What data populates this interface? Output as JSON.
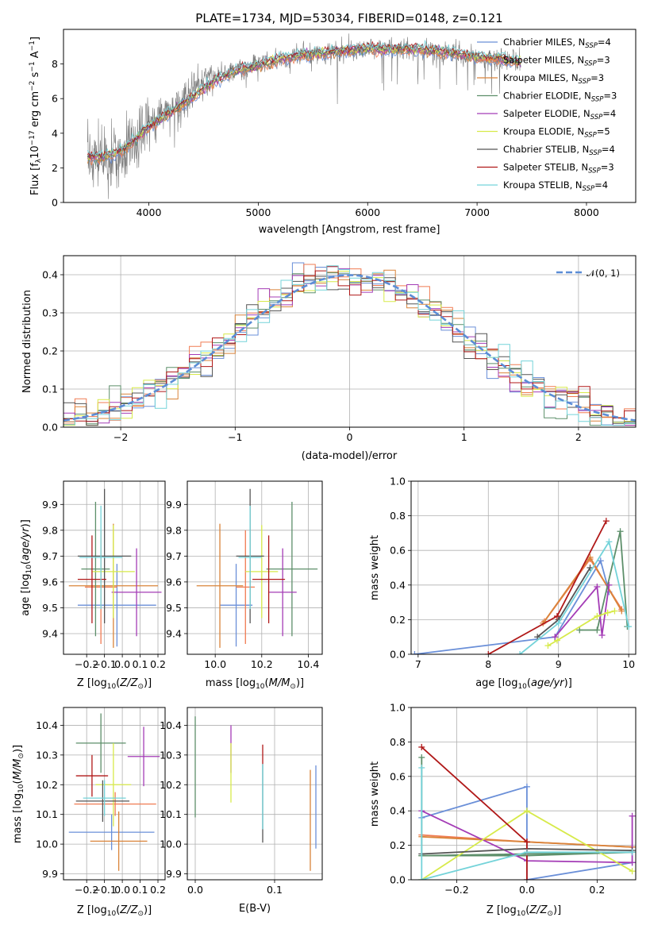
{
  "chart_data": [
    {
      "id": "spectrum",
      "type": "line",
      "title": "PLATE=1734, MJD=53034, FIBERID=0148, z=0.121",
      "xlabel": "wavelength [Angstrom, rest frame]",
      "ylabel": "Flux [f_λ 10^-17 erg cm^-2 s^-1 A^-1]",
      "xlim": [
        3220,
        8450
      ],
      "ylim": [
        0,
        10
      ],
      "xticks": [
        4000,
        5000,
        6000,
        7000,
        8000
      ],
      "yticks": [
        0,
        2,
        4,
        6,
        8
      ],
      "grid": false,
      "legend_position": "right",
      "observed_spectrum": {
        "x": [
          3440,
          3500,
          3560,
          3620,
          3680,
          3740,
          3800,
          3860,
          3920,
          3980,
          4040,
          4100,
          4160,
          4220,
          4280,
          4340,
          4400,
          4460,
          4520,
          4580,
          4640,
          4700,
          4760,
          4820,
          4880,
          4940,
          5000,
          5100,
          5200,
          5300,
          5400,
          5500,
          5600,
          5700,
          5800,
          5900,
          6000,
          6100,
          6200,
          6300,
          6400,
          6500,
          6600,
          6700,
          6800,
          6900,
          7000,
          7100,
          7200,
          7300,
          7400
        ],
        "y": [
          2.5,
          2.7,
          2.6,
          2.2,
          3.0,
          2.8,
          3.3,
          3.5,
          3.9,
          4.5,
          4.9,
          5.1,
          5.2,
          5.4,
          5.8,
          6.0,
          6.4,
          6.8,
          7.0,
          7.3,
          7.4,
          7.5,
          7.5,
          7.7,
          7.6,
          7.8,
          8.0,
          8.1,
          8.3,
          8.4,
          8.5,
          8.6,
          8.6,
          8.7,
          8.8,
          8.8,
          8.9,
          8.9,
          8.8,
          8.9,
          8.8,
          8.9,
          8.7,
          8.7,
          8.6,
          8.5,
          8.4,
          8.3,
          8.2,
          8.2,
          8.1
        ]
      },
      "series": [
        {
          "name": "Chabrier MILES, N_SSP=4",
          "color": "#6a8fd8"
        },
        {
          "name": "Salpeter MILES, N_SSP=3",
          "color": "#f07b52"
        },
        {
          "name": "Kroupa MILES, N_SSP=3",
          "color": "#d9843a"
        },
        {
          "name": "Chabrier ELODIE, N_SSP=3",
          "color": "#5d8f6a"
        },
        {
          "name": "Salpeter ELODIE, N_SSP=4",
          "color": "#a43cb6"
        },
        {
          "name": "Kroupa ELODIE, N_SSP=5",
          "color": "#d7ea4a"
        },
        {
          "name": "Chabrier STELIB, N_SSP=4",
          "color": "#555555"
        },
        {
          "name": "Salpeter STELIB, N_SSP=3",
          "color": "#b01818"
        },
        {
          "name": "Kroupa STELIB, N_SSP=4",
          "color": "#74d3d9"
        }
      ],
      "model_curve": {
        "x": [
          3440,
          3600,
          3800,
          4000,
          4200,
          4400,
          4600,
          4800,
          5000,
          5200,
          5400,
          5600,
          5800,
          6000,
          6200,
          6400,
          6600,
          6800,
          7000,
          7200,
          7400
        ],
        "y": [
          2.6,
          2.6,
          3.2,
          4.4,
          5.2,
          6.1,
          7.0,
          7.6,
          7.9,
          8.3,
          8.5,
          8.6,
          8.8,
          8.9,
          8.8,
          8.9,
          8.8,
          8.6,
          8.4,
          8.3,
          8.1
        ]
      }
    },
    {
      "id": "residuals",
      "type": "histogram",
      "xlabel": "(data-model)/error",
      "ylabel": "Normed distribution",
      "xlim": [
        -2.5,
        2.5
      ],
      "ylim": [
        0,
        0.45
      ],
      "xticks": [
        -2,
        -1,
        0,
        1,
        2
      ],
      "yticks": [
        0.0,
        0.1,
        0.2,
        0.3,
        0.4
      ],
      "grid": true,
      "legend_position": "top-right",
      "reference_curve": {
        "name": "𝒩(0, 1)",
        "color": "#5b8dd6",
        "mean": 0,
        "sigma": 1
      },
      "bin_width": 0.1
    },
    {
      "id": "age-vs-Z",
      "type": "errorbar",
      "xlabel": "Z [log10(Z/Z⊙)]",
      "ylabel": "age [log10(age/yr)]",
      "xlim": [
        -0.33,
        0.24
      ],
      "ylim": [
        9.32,
        9.99
      ],
      "xticks": [
        -0.2,
        -0.1,
        0.0,
        0.1,
        0.2
      ],
      "yticks": [
        9.4,
        9.5,
        9.6,
        9.7,
        9.8,
        9.9
      ],
      "grid": true,
      "points": [
        {
          "x": -0.03,
          "y": 9.51,
          "xerr": 0.22,
          "yerr": 0.16,
          "color": "#6a8fd8"
        },
        {
          "x": -0.12,
          "y": 9.58,
          "xerr": 0.09,
          "yerr": 0.22,
          "color": "#f07b52"
        },
        {
          "x": -0.05,
          "y": 9.585,
          "xerr": 0.25,
          "yerr": 0.24,
          "color": "#d9843a"
        },
        {
          "x": -0.15,
          "y": 9.65,
          "xerr": 0.08,
          "yerr": 0.26,
          "color": "#5d8f6a"
        },
        {
          "x": 0.08,
          "y": 9.56,
          "xerr": 0.14,
          "yerr": 0.17,
          "color": "#a43cb6"
        },
        {
          "x": -0.05,
          "y": 9.64,
          "xerr": 0.12,
          "yerr": 0.18,
          "color": "#d7ea4a"
        },
        {
          "x": -0.1,
          "y": 9.7,
          "xerr": 0.15,
          "yerr": 0.26,
          "color": "#555555"
        },
        {
          "x": -0.17,
          "y": 9.61,
          "xerr": 0.08,
          "yerr": 0.17,
          "color": "#b01818"
        },
        {
          "x": -0.12,
          "y": 9.695,
          "xerr": 0.12,
          "yerr": 0.2,
          "color": "#74d3d9"
        }
      ]
    },
    {
      "id": "age-vs-mass",
      "type": "errorbar",
      "xlabel": "mass [log10(M/M⊙)]",
      "ylabel": "",
      "xlim": [
        9.88,
        10.46
      ],
      "ylim": [
        9.32,
        9.99
      ],
      "xticks": [
        10.0,
        10.2,
        10.4
      ],
      "yticks": [
        9.4,
        9.5,
        9.6,
        9.7,
        9.8,
        9.9
      ],
      "grid": true,
      "points": [
        {
          "x": 10.09,
          "y": 9.51,
          "xerr": 0.07,
          "yerr": 0.16,
          "color": "#6a8fd8"
        },
        {
          "x": 10.13,
          "y": 9.58,
          "xerr": 0.04,
          "yerr": 0.22,
          "color": "#f07b52"
        },
        {
          "x": 10.02,
          "y": 9.585,
          "xerr": 0.1,
          "yerr": 0.24,
          "color": "#d9843a"
        },
        {
          "x": 10.33,
          "y": 9.65,
          "xerr": 0.11,
          "yerr": 0.26,
          "color": "#5d8f6a"
        },
        {
          "x": 10.29,
          "y": 9.56,
          "xerr": 0.06,
          "yerr": 0.17,
          "color": "#a43cb6"
        },
        {
          "x": 10.2,
          "y": 9.64,
          "xerr": 0.07,
          "yerr": 0.18,
          "color": "#d7ea4a"
        },
        {
          "x": 10.15,
          "y": 9.7,
          "xerr": 0.06,
          "yerr": 0.26,
          "color": "#555555"
        },
        {
          "x": 10.23,
          "y": 9.61,
          "xerr": 0.07,
          "yerr": 0.17,
          "color": "#b01818"
        },
        {
          "x": 10.15,
          "y": 9.695,
          "xerr": 0.05,
          "yerr": 0.2,
          "color": "#74d3d9"
        }
      ]
    },
    {
      "id": "weight-vs-age",
      "type": "line",
      "xlabel": "age [log10(age/yr)]",
      "ylabel": "mass weight",
      "xlim": [
        6.9,
        10.1
      ],
      "ylim": [
        0,
        1
      ],
      "xticks": [
        7,
        8,
        9,
        10
      ],
      "yticks": [
        0.0,
        0.2,
        0.4,
        0.6,
        0.8,
        1.0
      ],
      "grid": true,
      "series": [
        {
          "color": "#6a8fd8",
          "x": [
            6.95,
            8.95,
            9.6,
            9.72
          ],
          "y": [
            0.0,
            0.1,
            0.54,
            0.36
          ]
        },
        {
          "color": "#f07b52",
          "x": [
            8.8,
            9.45,
            9.9
          ],
          "y": [
            0.19,
            0.55,
            0.26
          ]
        },
        {
          "color": "#d9843a",
          "x": [
            8.78,
            9.45,
            9.9
          ],
          "y": [
            0.18,
            0.56,
            0.25
          ]
        },
        {
          "color": "#5d8f6a",
          "x": [
            9.3,
            9.55,
            9.88,
            9.98
          ],
          "y": [
            0.14,
            0.14,
            0.71,
            0.16
          ]
        },
        {
          "color": "#a43cb6",
          "x": [
            8.95,
            9.55,
            9.62,
            9.72
          ],
          "y": [
            0.1,
            0.39,
            0.11,
            0.4
          ]
        },
        {
          "color": "#d7ea4a",
          "x": [
            8.85,
            8.98,
            9.55,
            9.7,
            9.8
          ],
          "y": [
            0.05,
            0.08,
            0.22,
            0.24,
            0.25
          ]
        },
        {
          "color": "#555555",
          "x": [
            8.7,
            9.0,
            9.45
          ],
          "y": [
            0.1,
            0.2,
            0.5
          ]
        },
        {
          "color": "#b01818",
          "x": [
            8.0,
            8.98,
            9.68
          ],
          "y": [
            0.0,
            0.22,
            0.77
          ]
        },
        {
          "color": "#74d3d9",
          "x": [
            8.45,
            9.0,
            9.72,
            10.0
          ],
          "y": [
            0.0,
            0.18,
            0.65,
            0.16
          ]
        }
      ]
    },
    {
      "id": "mass-vs-Z",
      "type": "errorbar",
      "xlabel": "Z [log10(Z/Z⊙)]",
      "ylabel": "mass [log10(M/M⊙)]",
      "xlim": [
        -0.33,
        0.24
      ],
      "ylim": [
        9.88,
        10.46
      ],
      "xticks": [
        -0.2,
        -0.1,
        0.0,
        0.1,
        0.2
      ],
      "yticks": [
        9.9,
        10.0,
        10.1,
        10.2,
        10.3,
        10.4
      ],
      "grid": true,
      "points": [
        {
          "x": -0.06,
          "y": 10.04,
          "xerr": 0.24,
          "yerr": 0.06,
          "color": "#6a8fd8"
        },
        {
          "x": -0.04,
          "y": 10.135,
          "xerr": 0.23,
          "yerr": 0.04,
          "color": "#f07b52"
        },
        {
          "x": -0.02,
          "y": 10.01,
          "xerr": 0.16,
          "yerr": 0.1,
          "color": "#d9843a"
        },
        {
          "x": -0.12,
          "y": 10.34,
          "xerr": 0.14,
          "yerr": 0.1,
          "color": "#5d8f6a"
        },
        {
          "x": 0.12,
          "y": 10.295,
          "xerr": 0.09,
          "yerr": 0.1,
          "color": "#a43cb6"
        },
        {
          "x": -0.05,
          "y": 10.2,
          "xerr": 0.1,
          "yerr": 0.14,
          "color": "#d7ea4a"
        },
        {
          "x": -0.11,
          "y": 10.145,
          "xerr": 0.15,
          "yerr": 0.07,
          "color": "#555555"
        },
        {
          "x": -0.17,
          "y": 10.23,
          "xerr": 0.09,
          "yerr": 0.07,
          "color": "#b01818"
        },
        {
          "x": -0.1,
          "y": 10.155,
          "xerr": 0.12,
          "yerr": 0.06,
          "color": "#74d3d9"
        }
      ]
    },
    {
      "id": "mass-vs-ebv",
      "type": "errorbar",
      "xlabel": "E(B-V)",
      "ylabel": "",
      "xlim": [
        -0.01,
        0.16
      ],
      "ylim": [
        9.88,
        10.46
      ],
      "xticks": [
        0.0,
        0.1
      ],
      "yticks": [
        9.9,
        10.0,
        10.1,
        10.2,
        10.3,
        10.4
      ],
      "grid": true,
      "points": [
        {
          "x": 0.152,
          "y": 10.125,
          "xerr": 0,
          "yerr": 0.14,
          "color": "#6a8fd8"
        },
        {
          "x": 0.145,
          "y": 10.08,
          "xerr": 0,
          "yerr": 0.17,
          "color": "#d9843a"
        },
        {
          "x": 0.0,
          "y": 10.26,
          "xerr": 0,
          "yerr": 0.17,
          "color": "#5d8f6a"
        },
        {
          "x": 0.045,
          "y": 10.32,
          "xerr": 0,
          "yerr": 0.08,
          "color": "#a43cb6"
        },
        {
          "x": 0.045,
          "y": 10.24,
          "xerr": 0,
          "yerr": 0.1,
          "color": "#d7ea4a"
        },
        {
          "x": 0.085,
          "y": 10.135,
          "xerr": 0,
          "yerr": 0.13,
          "color": "#555555"
        },
        {
          "x": 0.085,
          "y": 10.3,
          "xerr": 0,
          "yerr": 0.035,
          "color": "#b01818"
        },
        {
          "x": 0.085,
          "y": 10.16,
          "xerr": 0,
          "yerr": 0.11,
          "color": "#74d3d9"
        }
      ]
    },
    {
      "id": "weight-vs-Z",
      "type": "line",
      "xlabel": "Z [log10(Z/Z⊙)]",
      "ylabel": "mass weight",
      "xlim": [
        -0.33,
        0.31
      ],
      "ylim": [
        0,
        1
      ],
      "xticks": [
        -0.2,
        0.0,
        0.2
      ],
      "yticks": [
        0.0,
        0.2,
        0.4,
        0.6,
        0.8,
        1.0
      ],
      "grid": true,
      "series": [
        {
          "color": "#6a8fd8",
          "x": [
            -0.3,
            0.0,
            0.0,
            0.3
          ],
          "y": [
            0.36,
            0.54,
            0.0,
            0.1
          ]
        },
        {
          "color": "#f07b52",
          "x": [
            -0.3,
            0.0,
            0.3
          ],
          "y": [
            0.26,
            0.22,
            0.19
          ]
        },
        {
          "color": "#d9843a",
          "x": [
            -0.3,
            0.0,
            0.3
          ],
          "y": [
            0.25,
            0.22,
            0.19
          ]
        },
        {
          "color": "#5d8f6a",
          "x": [
            -0.3,
            -0.3,
            0.0,
            0.3,
            -0.3
          ],
          "y": [
            0.71,
            0.14,
            0.14,
            0.16,
            0.14
          ]
        },
        {
          "color": "#a43cb6",
          "x": [
            -0.3,
            0.0,
            0.3,
            0.3
          ],
          "y": [
            0.4,
            0.11,
            0.1,
            0.37
          ]
        },
        {
          "color": "#d7ea4a",
          "x": [
            -0.3,
            0.0,
            0.3
          ],
          "y": [
            0.0,
            0.4,
            0.05
          ]
        },
        {
          "color": "#555555",
          "x": [
            -0.3,
            0.0,
            0.3
          ],
          "y": [
            0.15,
            0.18,
            0.17
          ]
        },
        {
          "color": "#b01818",
          "x": [
            -0.3,
            0.0,
            0.0
          ],
          "y": [
            0.77,
            0.22,
            0.0
          ]
        },
        {
          "color": "#74d3d9",
          "x": [
            -0.3,
            -0.3,
            0.0,
            0.3
          ],
          "y": [
            0.65,
            0.0,
            0.16,
            0.16
          ]
        }
      ]
    }
  ]
}
